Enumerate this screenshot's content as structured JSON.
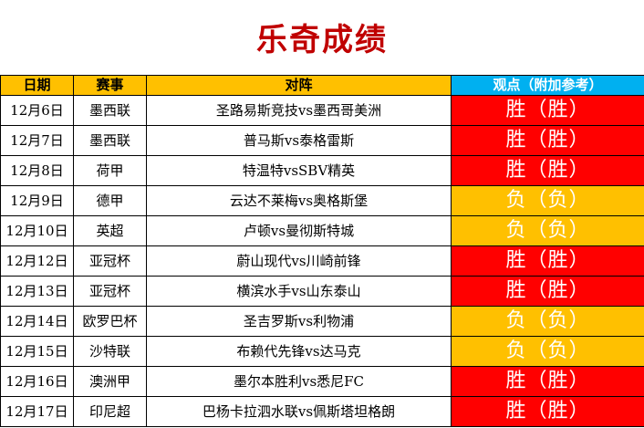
{
  "title": "乐奇成绩",
  "colors": {
    "title": "#c00000",
    "header_bg": "#ffc000",
    "header_view_bg": "#00b0f0",
    "win_bg": "#ff0000",
    "loss_bg": "#ffc000"
  },
  "headers": {
    "date": "日期",
    "league": "赛事",
    "match": "对阵",
    "view": "观点（附加参考）"
  },
  "rows": [
    {
      "date": "12月6日",
      "league": "墨西联",
      "match": "圣路易斯竞技vs墨西哥美洲",
      "view": "胜（胜）",
      "result": "win"
    },
    {
      "date": "12月7日",
      "league": "墨西联",
      "match": "普马斯vs泰格雷斯",
      "view": "胜（胜）",
      "result": "win"
    },
    {
      "date": "12月8日",
      "league": "荷甲",
      "match": "特温特vsSBV精英",
      "view": "胜（胜）",
      "result": "win"
    },
    {
      "date": "12月9日",
      "league": "德甲",
      "match": "云达不莱梅vs奥格斯堡",
      "view": "负（负）",
      "result": "loss"
    },
    {
      "date": "12月10日",
      "league": "英超",
      "match": "卢顿vs曼彻斯特城",
      "view": "负（负）",
      "result": "loss"
    },
    {
      "date": "12月12日",
      "league": "亚冠杯",
      "match": "蔚山现代vs川崎前锋",
      "view": "胜（胜）",
      "result": "win"
    },
    {
      "date": "12月13日",
      "league": "亚冠杯",
      "match": "横滨水手vs山东泰山",
      "view": "胜（胜）",
      "result": "win"
    },
    {
      "date": "12月14日",
      "league": "欧罗巴杯",
      "match": "圣吉罗斯vs利物浦",
      "view": "负（负）",
      "result": "loss"
    },
    {
      "date": "12月15日",
      "league": "沙特联",
      "match": "布赖代先锋vs达马克",
      "view": "负（负）",
      "result": "loss"
    },
    {
      "date": "12月16日",
      "league": "澳洲甲",
      "match": "墨尔本胜利vs悉尼FC",
      "view": "胜（胜）",
      "result": "win"
    },
    {
      "date": "12月17日",
      "league": "印尼超",
      "match": "巴杨卡拉泗水联vs佩斯塔坦格朗",
      "view": "胜（胜）",
      "result": "win"
    }
  ]
}
